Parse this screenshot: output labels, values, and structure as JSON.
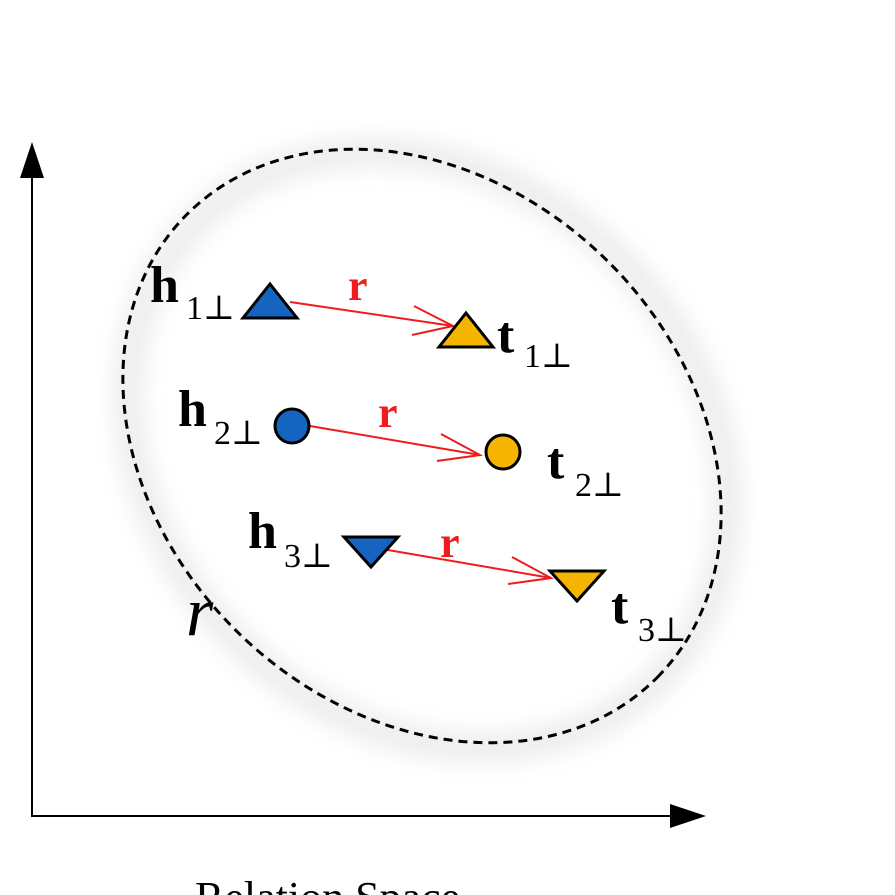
{
  "colors": {
    "head": "#1565C0",
    "tail": "#F5B400",
    "relation": "#EE1C1C",
    "axis": "#000000",
    "halo": "#EAEAEA"
  },
  "space_label": "r",
  "caption": "Relation Space",
  "relation_label": "r",
  "pairs": [
    {
      "head_main": "h",
      "head_sub": "1⊥",
      "tail_main": "t",
      "tail_sub": "1⊥",
      "shape": "triangle-up"
    },
    {
      "head_main": "h",
      "head_sub": "2⊥",
      "tail_main": "t",
      "tail_sub": "2⊥",
      "shape": "circle"
    },
    {
      "head_main": "h",
      "head_sub": "3⊥",
      "tail_main": "t",
      "tail_sub": "3⊥",
      "shape": "triangle-down"
    }
  ]
}
